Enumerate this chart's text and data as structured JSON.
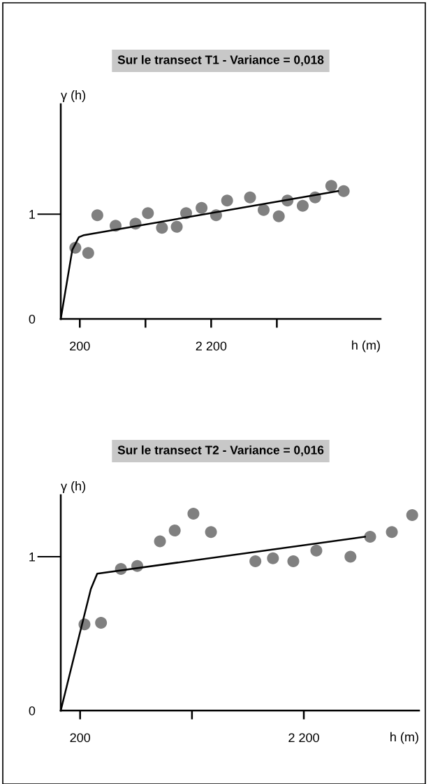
{
  "chart_data": [
    {
      "type": "scatter",
      "title": "Sur le transect T1 - Variance = 0,018",
      "xlabel": "h (m)",
      "ylabel": "γ (h)",
      "xlim": [
        -90,
        4780
      ],
      "ylim": [
        0,
        2.05
      ],
      "xticks": [
        200,
        {
          "value": 1200,
          "label": null
        },
        {
          "value": 2200,
          "label": "2 200"
        },
        {
          "value": 3200,
          "label": null
        }
      ],
      "yticks": [
        0,
        1
      ],
      "grid": false,
      "legend": false,
      "series": [
        {
          "marker": "circle",
          "color": "#808080",
          "x": [
            132,
            328,
            467,
            745,
            1048,
            1237,
            1451,
            1676,
            1819,
            2054,
            2275,
            2443,
            2792,
            2999,
            3230,
            3362,
            3594,
            3783,
            4029,
            4218
          ],
          "values": [
            0.68,
            0.63,
            0.99,
            0.89,
            0.91,
            1.01,
            0.87,
            0.88,
            1.01,
            1.06,
            0.99,
            1.13,
            1.16,
            1.04,
            0.98,
            1.13,
            1.08,
            1.16,
            1.27,
            1.22
          ]
        },
        {
          "type": "line",
          "color": "#000000",
          "x": [
            -90,
            86,
            186,
            264,
            4132
          ],
          "values": [
            0,
            0.66,
            0.78,
            0.8,
            1.22
          ]
        }
      ]
    },
    {
      "type": "scatter",
      "title": "Sur le transect T2 - Variance = 0,016",
      "xlabel": "h (m)",
      "ylabel": "γ (h)",
      "xlim": [
        27,
        3230
      ],
      "ylim": [
        0,
        1.4
      ],
      "xticks": [
        200,
        {
          "value": 1200,
          "label": null
        },
        {
          "value": 2200,
          "label": "2 200"
        }
      ],
      "yticks": [
        0,
        1
      ],
      "grid": false,
      "legend": false,
      "series": [
        {
          "marker": "circle",
          "color": "#808080",
          "x": [
            239,
            387,
            565,
            711,
            914,
            1046,
            1213,
            1370,
            1767,
            1924,
            2106,
            2312,
            2617,
            2793,
            2987,
            3169
          ],
          "values": [
            0.56,
            0.57,
            0.92,
            0.94,
            1.1,
            1.17,
            1.28,
            1.16,
            0.97,
            0.99,
            0.97,
            1.04,
            1.0,
            1.13,
            1.16,
            1.27
          ]
        },
        {
          "type": "line",
          "color": "#000000",
          "x": [
            27,
            193,
            296,
            353,
            2747
          ],
          "values": [
            0,
            0.49,
            0.79,
            0.89,
            1.13
          ]
        }
      ]
    }
  ]
}
